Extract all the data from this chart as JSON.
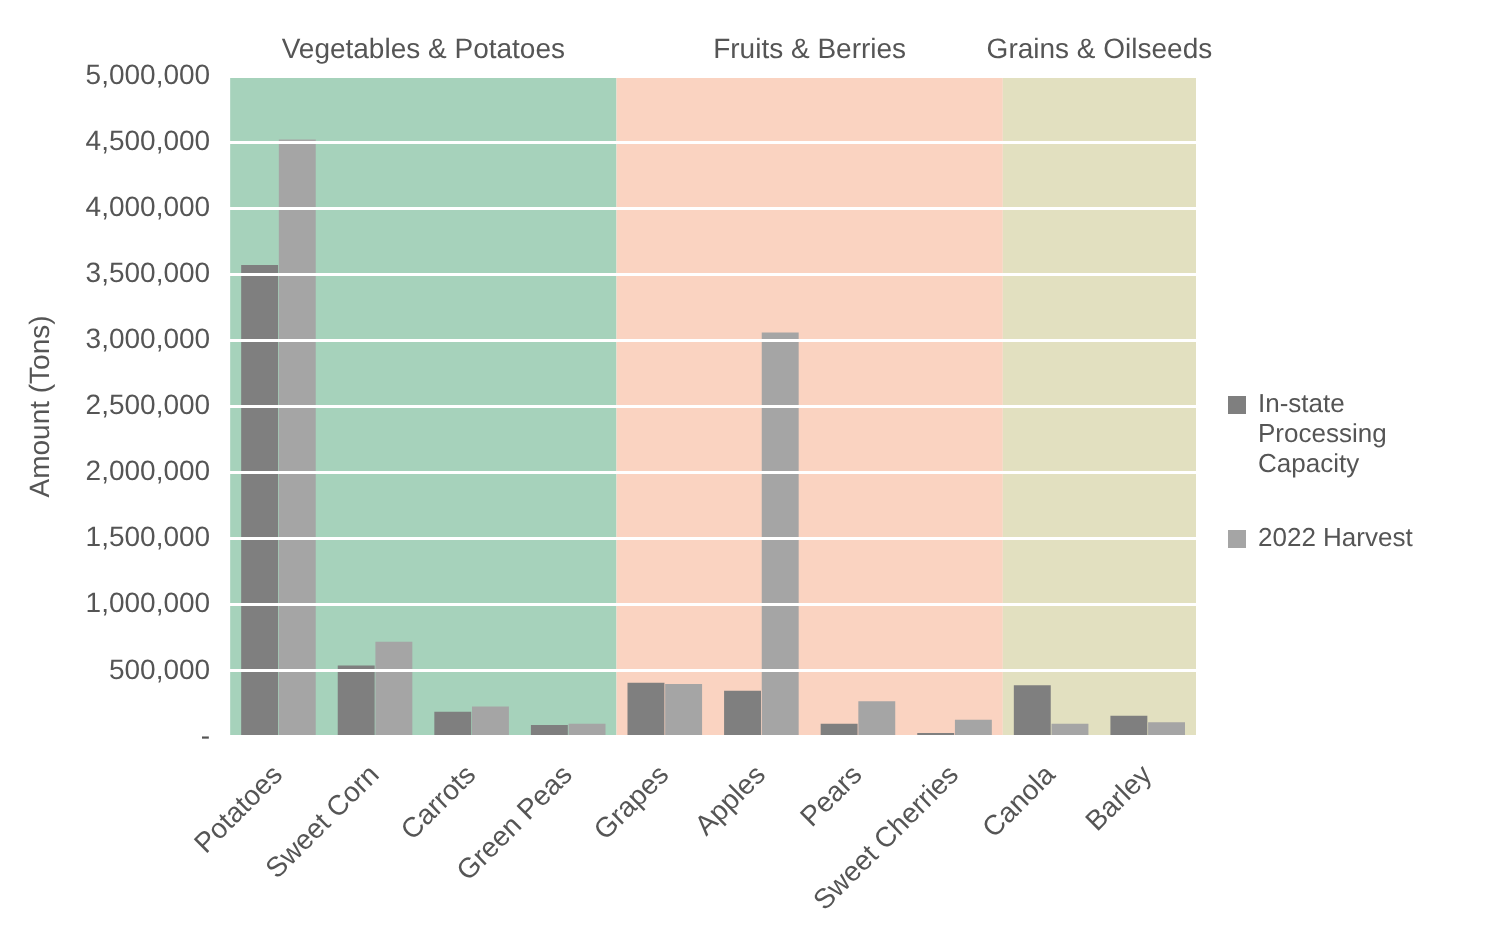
{
  "chart_data": {
    "type": "bar",
    "ylabel": "Amount (Tons)",
    "categories": [
      "Potatoes",
      "Sweet Corn",
      "Carrots",
      "Green Peas",
      "Grapes",
      "Apples",
      "Pears",
      "Sweet Cherries",
      "Canola",
      "Barley"
    ],
    "series": [
      {
        "name": "In-state Processing Capacity",
        "color": "#7f7f7f",
        "values": [
          3570000,
          540000,
          190000,
          90000,
          410000,
          350000,
          100000,
          10000,
          390000,
          160000
        ]
      },
      {
        "name": "2022 Harvest",
        "color": "#a5a5a5",
        "values": [
          4520000,
          720000,
          230000,
          100000,
          400000,
          3060000,
          270000,
          130000,
          100000,
          110000
        ]
      }
    ],
    "ylim": [
      0,
      5000000
    ],
    "yticks": [
      {
        "value": 0,
        "label": "-"
      },
      {
        "value": 500000,
        "label": "500,000"
      },
      {
        "value": 1000000,
        "label": "1,000,000"
      },
      {
        "value": 1500000,
        "label": "1,500,000"
      },
      {
        "value": 2000000,
        "label": "2,000,000"
      },
      {
        "value": 2500000,
        "label": "2,500,000"
      },
      {
        "value": 3000000,
        "label": "3,000,000"
      },
      {
        "value": 3500000,
        "label": "3,500,000"
      },
      {
        "value": 4000000,
        "label": "4,000,000"
      },
      {
        "value": 4500000,
        "label": "4,500,000"
      },
      {
        "value": 5000000,
        "label": "5,000,000"
      }
    ],
    "grid": "y",
    "legend": "right",
    "bands": [
      {
        "axis": "x",
        "from": "Potatoes",
        "to": "Green Peas",
        "label": "Vegetables & Potatoes",
        "color": "#a6d2bb"
      },
      {
        "axis": "x",
        "from": "Grapes",
        "to": "Sweet Cherries",
        "label": "Fruits & Berries",
        "color": "#fad3c1"
      },
      {
        "axis": "x",
        "from": "Canola",
        "to": "Barley",
        "label": "Grains & Oilseeds",
        "color": "#e2e0c0"
      }
    ]
  }
}
